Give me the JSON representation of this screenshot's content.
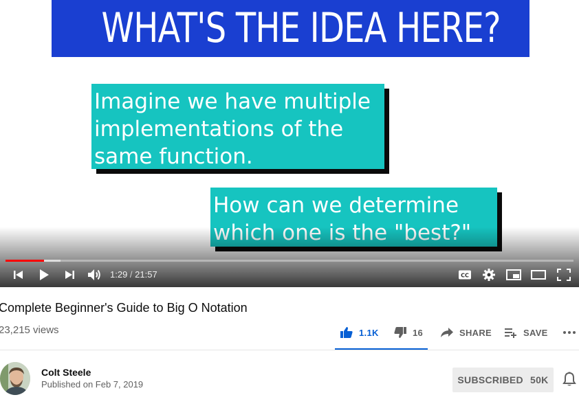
{
  "video": {
    "slide_heading": "WHAT'S THE IDEA HERE?",
    "card1_lines": [
      "Imagine we have multiple",
      "implementations of the",
      "same function."
    ],
    "card2_lines": [
      "How can we determine",
      "which one is the \"best?\""
    ],
    "current_time": "1:29",
    "separator": " / ",
    "duration": "21:57",
    "played_fraction": 0.068,
    "buffered_fraction": 0.097,
    "icons": [
      "previous-icon",
      "play-icon",
      "next-icon",
      "volume-icon",
      "captions-icon",
      "settings-icon",
      "miniplayer-icon",
      "theater-icon",
      "fullscreen-icon"
    ]
  },
  "info": {
    "title": "Complete Beginner's Guide to Big O Notation",
    "views": "23,215 views",
    "like_count": "1.1K",
    "dislike_count": "16",
    "share_label": "SHARE",
    "save_label": "SAVE"
  },
  "channel": {
    "name": "Colt Steele",
    "published": "Published on Feb 7, 2019",
    "subscribe_label": "SUBSCRIBED",
    "subscriber_count": "50K"
  },
  "colors": {
    "slide_blue": "#1a3fd1",
    "card_teal": "#16c4c0",
    "progress_red": "#ff0000",
    "like_blue": "#065fd4"
  }
}
